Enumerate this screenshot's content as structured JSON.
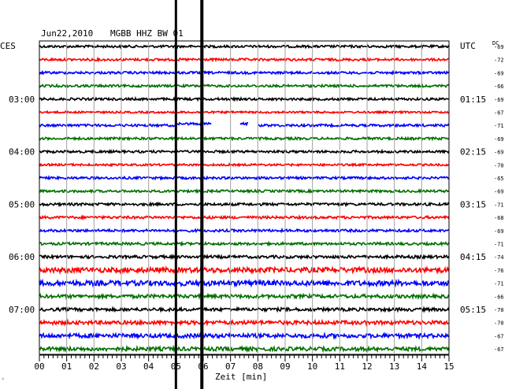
{
  "header": {
    "date": "Jun22,2010",
    "station": "MGBB HHZ BW 01",
    "left_zone": "CES",
    "right_zone": "UTC",
    "dc_label": "DC"
  },
  "corner_mark": "˄",
  "chart_data": {
    "type": "line",
    "title": "Jun22,2010    MGBB HHZ BW 01",
    "xlabel": "Zeit [min]",
    "ylabel": "",
    "xlim": [
      0,
      15
    ],
    "x_ticks": [
      "00",
      "01",
      "02",
      "03",
      "04",
      "05",
      "06",
      "07",
      "08",
      "09",
      "10",
      "11",
      "12",
      "13",
      "14",
      "15"
    ],
    "grid": true,
    "trace_colors": [
      "#000000",
      "#ff0000",
      "#0000ff",
      "#007000"
    ],
    "left_time_labels": [
      "03:00",
      "04:00",
      "05:00",
      "06:00",
      "07:00"
    ],
    "right_time_labels": [
      "01:15",
      "02:15",
      "03:15",
      "04:15",
      "05:15"
    ],
    "time_label_every_traces": 4,
    "time_label_first_trace": 4,
    "dc_offsets": [
      "-69",
      "-72",
      "-69",
      "-66",
      "-69",
      "-67",
      "-71",
      "-69",
      "-69",
      "-70",
      "-65",
      "-69",
      "-71",
      "-68",
      "-69",
      "-71",
      "-74",
      "-76",
      "-71",
      "-66",
      "-70",
      "-70",
      "-67",
      "-67"
    ],
    "trace_amplitude": [
      1.5,
      1.5,
      1.5,
      1.5,
      1.5,
      1.2,
      1.5,
      1.5,
      1.5,
      1.3,
      1.5,
      1.5,
      1.6,
      1.6,
      1.6,
      1.6,
      1.8,
      3.2,
      3.2,
      2.2,
      2.0,
      2.4,
      2.6,
      2.4
    ],
    "event_markers_min": [
      5.0,
      5.95
    ],
    "gap": {
      "trace": 6,
      "segments": [
        [
          6.3,
          7.35
        ],
        [
          7.65,
          8.0
        ]
      ],
      "raised_segments": [
        [
          5.0,
          6.3
        ],
        [
          7.35,
          7.65
        ]
      ]
    }
  }
}
